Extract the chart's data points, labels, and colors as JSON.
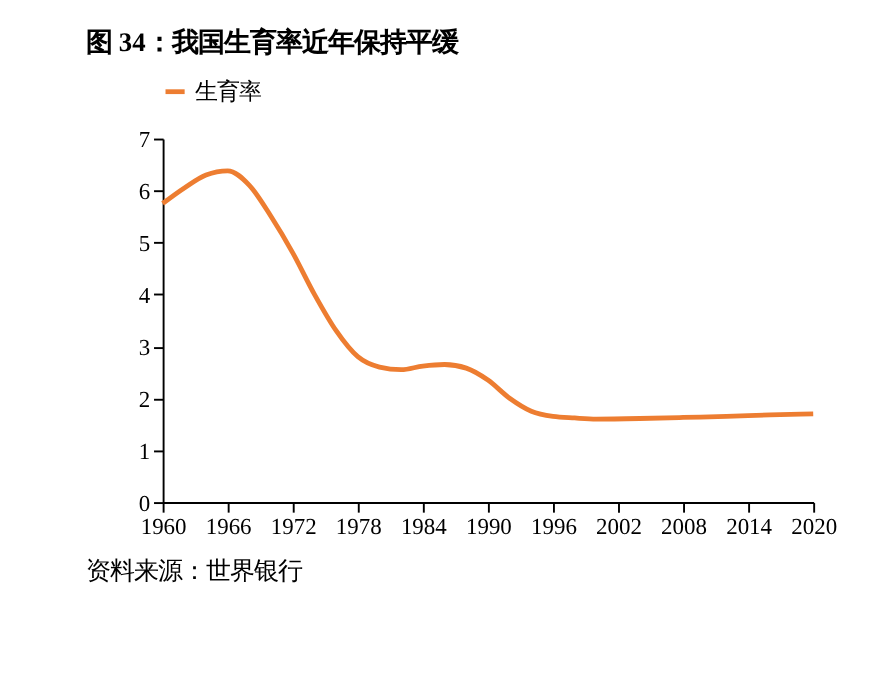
{
  "chart_data": {
    "type": "line",
    "title": "图 34：我国生育率近年保持平缓",
    "annotations": [
      "资料来源：世界银行"
    ],
    "x": [
      1960,
      1962,
      1964,
      1966,
      1968,
      1970,
      1972,
      1974,
      1976,
      1978,
      1980,
      1982,
      1984,
      1986,
      1988,
      1990,
      1992,
      1994,
      1996,
      1998,
      2000,
      2004,
      2008,
      2012,
      2016,
      2020
    ],
    "series": [
      {
        "name": "生育率",
        "color": "#ed7d31",
        "values": [
          5.75,
          6.05,
          6.3,
          6.38,
          6.1,
          5.5,
          4.8,
          4.0,
          3.3,
          2.8,
          2.6,
          2.55,
          2.62,
          2.65,
          2.58,
          2.35,
          2.0,
          1.75,
          1.65,
          1.62,
          1.6,
          1.61,
          1.63,
          1.65,
          1.68,
          1.7
        ]
      }
    ],
    "xlim": [
      1960,
      2020
    ],
    "xticks": [
      1960,
      1966,
      1972,
      1978,
      1984,
      1990,
      1996,
      2002,
      2008,
      2014,
      2020
    ],
    "ylim": [
      0,
      7
    ],
    "yticks": [
      0,
      1,
      2,
      3,
      4,
      5,
      6,
      7
    ],
    "grid": false,
    "legend": "top",
    "marker": "none",
    "line_style": "solid"
  }
}
